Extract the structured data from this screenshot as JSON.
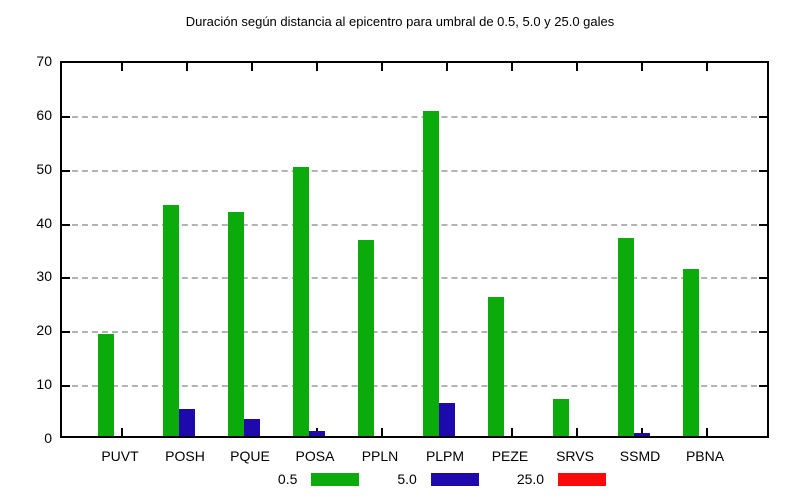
{
  "chart_data": {
    "type": "bar",
    "title": "Duración según distancia al epicentro para umbral de 0.5, 5.0 y 25.0 gales",
    "categories": [
      "PUVT",
      "POSH",
      "PQUE",
      "POSA",
      "PPLN",
      "PLPM",
      "PEZE",
      "SRVS",
      "SSMD",
      "PBNA"
    ],
    "series": [
      {
        "name": "0.5",
        "color": "#0cab0c",
        "values": [
          19.0,
          42.8,
          41.5,
          50.0,
          36.3,
          60.3,
          25.8,
          6.8,
          36.8,
          31.0
        ]
      },
      {
        "name": "5.0",
        "color": "#1e0aac",
        "values": [
          0,
          5.0,
          3.2,
          1.0,
          0,
          6.2,
          0,
          0,
          0.5,
          0
        ]
      },
      {
        "name": "25.0",
        "color": "#fa0a0a",
        "values": [
          0,
          0,
          0,
          0,
          0,
          0,
          0,
          0,
          0,
          0
        ]
      }
    ],
    "xlabel": "",
    "ylabel": "",
    "ylim": [
      0,
      70
    ],
    "yticks": [
      0,
      10,
      20,
      30,
      40,
      50,
      60,
      70
    ],
    "grid": true,
    "legend_position": "bottom-center"
  }
}
